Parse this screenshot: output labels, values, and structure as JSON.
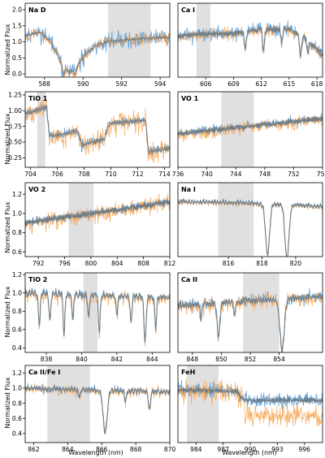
{
  "chart_data": {
    "type": "line",
    "layout": "5x2 grid of spectral panels",
    "series": [
      {
        "name": "",
        "color": "#4f98d6"
      },
      {
        "name": "",
        "color": "#f6a24f"
      },
      {
        "name": "",
        "color": "#6b7b86"
      }
    ],
    "shared_axis_labels": {
      "ylabel": "Normalized Flux",
      "xlabel": "Wavelength (nm)"
    },
    "panels": [
      {
        "title": "Na D",
        "col": 0,
        "row": 0,
        "xlim": [
          587.0,
          594.5
        ],
        "ylim": [
          -0.1,
          2.2
        ],
        "xticks": [
          588,
          590,
          592,
          594
        ],
        "yticks": [
          0.0,
          0.5,
          1.0,
          1.5,
          2.0
        ],
        "yfmt": 1,
        "shade": [
          591.3,
          593.5
        ],
        "continuum": [
          [
            587.0,
            1.2
          ],
          [
            587.8,
            1.3
          ],
          [
            588.4,
            0.95
          ],
          [
            588.9,
            0.3
          ],
          [
            589.3,
            0.05
          ],
          [
            589.7,
            0.25
          ],
          [
            590.1,
            0.6
          ],
          [
            590.6,
            0.85
          ],
          [
            591.2,
            1.0
          ],
          [
            592.0,
            1.05
          ],
          [
            593.0,
            1.1
          ],
          [
            594.5,
            1.15
          ]
        ],
        "lines": [
          [
            588.995,
            0.25,
            0.06
          ],
          [
            589.592,
            0.22,
            0.06
          ]
        ],
        "blue_noise": 0.22,
        "orange_noise": 0.15
      },
      {
        "title": "Ca I",
        "col": 1,
        "row": 0,
        "xlim": [
          603.0,
          618.6
        ],
        "ylim": [
          0.55,
          1.4
        ],
        "xticks": [
          606,
          609,
          612,
          615,
          618
        ],
        "yticks": [],
        "yfmt": 1,
        "shade": [
          605.0,
          606.5
        ],
        "continuum": [
          [
            603.0,
            1.02
          ],
          [
            606.0,
            1.05
          ],
          [
            609.0,
            1.05
          ],
          [
            612.0,
            1.1
          ],
          [
            615.0,
            1.1
          ],
          [
            616.8,
            1.0
          ],
          [
            618.6,
            0.8
          ]
        ],
        "lines": [
          [
            610.27,
            0.2,
            0.1
          ],
          [
            612.22,
            0.25,
            0.1
          ],
          [
            614.2,
            0.15,
            0.1
          ],
          [
            616.22,
            0.25,
            0.1
          ],
          [
            617.0,
            0.15,
            0.1
          ]
        ],
        "blue_noise": 0.06,
        "orange_noise": 0.05
      },
      {
        "title": "TiO 1",
        "col": 0,
        "row": 1,
        "xlim": [
          703.6,
          714.4
        ],
        "ylim": [
          0.1,
          1.3
        ],
        "xticks": [
          704,
          706,
          708,
          710,
          712,
          714
        ],
        "yticks": [
          0.25,
          0.5,
          0.75,
          1.0,
          1.25
        ],
        "yfmt": 2,
        "shade": [
          704.5,
          705.1
        ],
        "continuum": [
          [
            703.6,
            0.95
          ],
          [
            705.2,
            1.05
          ],
          [
            705.4,
            0.6
          ],
          [
            707.0,
            0.65
          ],
          [
            707.5,
            0.7
          ],
          [
            707.8,
            0.45
          ],
          [
            709.5,
            0.55
          ],
          [
            709.9,
            0.8
          ],
          [
            712.6,
            0.85
          ],
          [
            712.8,
            0.35
          ],
          [
            714.4,
            0.4
          ]
        ],
        "lines": [],
        "blue_noise": 0.06,
        "orange_noise": 0.14
      },
      {
        "title": "VO 1",
        "col": 1,
        "row": 1,
        "xlim": [
          736.0,
          756.0
        ],
        "ylim": [
          0.5,
          1.4
        ],
        "xticks": [
          736,
          740,
          744,
          748,
          752,
          756
        ],
        "yticks": [],
        "yfmt": 1,
        "shade": [
          742.0,
          746.5
        ],
        "continuum": [
          [
            736.0,
            0.9
          ],
          [
            744.0,
            0.97
          ],
          [
            756.0,
            1.08
          ]
        ],
        "lines": [],
        "blue_noise": 0.04,
        "orange_noise": 0.06
      },
      {
        "title": "VO 2",
        "col": 0,
        "row": 2,
        "xlim": [
          790.0,
          812.0
        ],
        "ylim": [
          0.55,
          1.32
        ],
        "xticks": [
          792,
          796,
          800,
          804,
          808,
          812
        ],
        "yticks": [
          0.6,
          0.8,
          1.0,
          1.2
        ],
        "yfmt": 1,
        "shade": [
          796.6,
          800.4
        ],
        "continuum": [
          [
            790.0,
            0.9
          ],
          [
            800.0,
            1.0
          ],
          [
            812.0,
            1.12
          ]
        ],
        "lines": [],
        "blue_noise": 0.03,
        "orange_noise": 0.07
      },
      {
        "title": "Na I",
        "col": 1,
        "row": 2,
        "xlim": [
          813.0,
          821.6
        ],
        "ylim": [
          0.2,
          1.3
        ],
        "xticks": [
          816,
          818,
          820
        ],
        "yticks": [],
        "yfmt": 1,
        "shade": [
          815.4,
          817.5
        ],
        "continuum": [
          [
            813.0,
            1.02
          ],
          [
            817.0,
            1.0
          ],
          [
            821.6,
            0.95
          ]
        ],
        "lines": [
          [
            818.33,
            0.75,
            0.12
          ],
          [
            819.48,
            0.8,
            0.12
          ]
        ],
        "blue_noise": 0.02,
        "orange_noise": 0.025
      },
      {
        "title": "TiO 2",
        "col": 0,
        "row": 3,
        "xlim": [
          836.8,
          845.0
        ],
        "ylim": [
          0.35,
          1.22
        ],
        "xticks": [
          838,
          840,
          842,
          844
        ],
        "yticks": [
          0.4,
          0.6,
          0.8,
          1.0,
          1.2
        ],
        "yfmt": 1,
        "shade": [
          840.1,
          840.9
        ],
        "continuum": [
          [
            836.8,
            1.0
          ],
          [
            845.0,
            0.95
          ]
        ],
        "lines": [
          [
            837.6,
            0.35,
            0.05
          ],
          [
            838.2,
            0.3,
            0.05
          ],
          [
            839.0,
            0.45,
            0.05
          ],
          [
            839.5,
            0.25,
            0.05
          ],
          [
            840.4,
            0.25,
            0.05
          ],
          [
            841.0,
            0.4,
            0.05
          ],
          [
            842.0,
            0.2,
            0.05
          ],
          [
            842.8,
            0.3,
            0.05
          ],
          [
            843.6,
            0.5,
            0.06
          ],
          [
            844.2,
            0.35,
            0.05
          ]
        ],
        "blue_noise": 0.03,
        "orange_noise": 0.05
      },
      {
        "title": "Ca II",
        "col": 1,
        "row": 3,
        "xlim": [
          847.0,
          857.0
        ],
        "ylim": [
          0.45,
          1.3
        ],
        "xticks": [
          848,
          850,
          852,
          854
        ],
        "yticks": [],
        "yfmt": 1,
        "shade": [
          851.5,
          854.0
        ],
        "continuum": [
          [
            847.0,
            0.95
          ],
          [
            852.0,
            1.0
          ],
          [
            857.0,
            1.05
          ]
        ],
        "lines": [
          [
            849.8,
            0.35,
            0.1
          ],
          [
            854.2,
            0.55,
            0.15
          ],
          [
            850.9,
            0.15,
            0.06
          ],
          [
            848.6,
            0.15,
            0.06
          ]
        ],
        "blue_noise": 0.05,
        "orange_noise": 0.06
      },
      {
        "title": "Ca II/Fe I",
        "col": 0,
        "row": 4,
        "xlim": [
          861.5,
          870.0
        ],
        "ylim": [
          0.28,
          1.3
        ],
        "xticks": [
          862,
          864,
          866,
          868,
          870
        ],
        "yticks": [
          0.4,
          0.6,
          0.8,
          1.0,
          1.2
        ],
        "yfmt": 1,
        "shade": [
          862.8,
          865.3
        ],
        "continuum": [
          [
            861.5,
            1.0
          ],
          [
            870.0,
            0.95
          ]
        ],
        "lines": [
          [
            866.2,
            0.55,
            0.12
          ],
          [
            868.8,
            0.25,
            0.06
          ],
          [
            867.4,
            0.15,
            0.05
          ],
          [
            864.7,
            0.1,
            0.05
          ]
        ],
        "blue_noise": 0.04,
        "orange_noise": 0.05
      },
      {
        "title": "FeH",
        "col": 1,
        "row": 4,
        "xlim": [
          982.0,
          998.0
        ],
        "ylim": [
          0.3,
          1.3
        ],
        "xticks": [
          984,
          987,
          990,
          993,
          996
        ],
        "yticks": [],
        "yfmt": 1,
        "shade": [
          983.0,
          986.5
        ],
        "continuum": [
          [
            982.0,
            0.98
          ],
          [
            988.5,
            0.97
          ],
          [
            989.4,
            0.85
          ],
          [
            998.0,
            0.85
          ]
        ],
        "lines": [],
        "blue_noise": 0.08,
        "orange_noise": 0.12,
        "orange_drop": [
          [
            989.4,
            0.18
          ]
        ]
      }
    ]
  }
}
